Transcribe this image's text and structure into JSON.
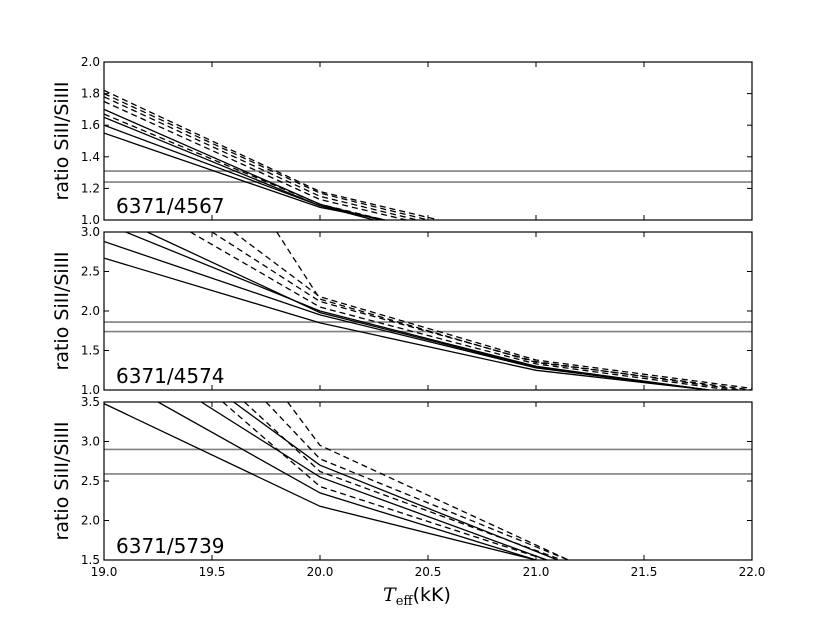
{
  "chart_data": [
    {
      "type": "line",
      "panel_label": "6371/4567",
      "ylabel": "ratio SiII/SiIII",
      "ylim": [
        1.0,
        2.0
      ],
      "yticks": [
        "1.0",
        "1.2",
        "1.4",
        "1.6",
        "1.8",
        "2.0"
      ],
      "xlim": [
        19.0,
        22.0
      ],
      "observed_levels": [
        1.31,
        1.24
      ],
      "series": [
        {
          "style": "solid",
          "x": [
            19.0,
            20.0,
            20.3
          ],
          "y": [
            1.55,
            1.08,
            1.0
          ]
        },
        {
          "style": "solid",
          "x": [
            19.0,
            20.0,
            20.25
          ],
          "y": [
            1.6,
            1.09,
            1.0
          ]
        },
        {
          "style": "solid",
          "x": [
            19.0,
            20.0,
            20.3
          ],
          "y": [
            1.65,
            1.09,
            1.0
          ]
        },
        {
          "style": "solid",
          "x": [
            19.0,
            20.0,
            20.28
          ],
          "y": [
            1.7,
            1.1,
            1.0
          ]
        },
        {
          "style": "dashed",
          "x": [
            19.0,
            20.0,
            20.3
          ],
          "y": [
            1.67,
            1.1,
            1.0
          ]
        },
        {
          "style": "dashed",
          "x": [
            19.0,
            20.0,
            20.4
          ],
          "y": [
            1.75,
            1.13,
            1.0
          ]
        },
        {
          "style": "dashed",
          "x": [
            19.0,
            20.0,
            20.45
          ],
          "y": [
            1.78,
            1.15,
            1.0
          ]
        },
        {
          "style": "dashed",
          "x": [
            19.0,
            20.0,
            20.5
          ],
          "y": [
            1.8,
            1.17,
            1.0
          ]
        },
        {
          "style": "dashed",
          "x": [
            19.0,
            20.0,
            20.55
          ],
          "y": [
            1.82,
            1.18,
            1.0
          ]
        }
      ]
    },
    {
      "type": "line",
      "panel_label": "6371/4574",
      "ylabel": "ratio SiII/SiIII",
      "ylim": [
        1.0,
        3.0
      ],
      "yticks": [
        "1.0",
        "1.5",
        "2.0",
        "2.5",
        "3.0"
      ],
      "xlim": [
        19.0,
        22.0
      ],
      "observed_levels": [
        1.86,
        1.74
      ],
      "series": [
        {
          "style": "solid",
          "x": [
            19.0,
            20.0,
            21.0,
            21.8
          ],
          "y": [
            2.67,
            1.85,
            1.25,
            1.0
          ]
        },
        {
          "style": "solid",
          "x": [
            19.0,
            20.0,
            21.0,
            21.8
          ],
          "y": [
            2.88,
            1.95,
            1.28,
            1.0
          ]
        },
        {
          "style": "solid",
          "x": [
            19.1,
            20.0,
            21.0,
            21.8
          ],
          "y": [
            3.0,
            2.0,
            1.3,
            1.0
          ]
        },
        {
          "style": "solid",
          "x": [
            19.2,
            20.0,
            21.0,
            21.8
          ],
          "y": [
            3.0,
            1.98,
            1.29,
            1.0
          ]
        },
        {
          "style": "dashed",
          "x": [
            19.4,
            20.0,
            21.0,
            21.9
          ],
          "y": [
            3.0,
            2.05,
            1.33,
            1.0
          ]
        },
        {
          "style": "dashed",
          "x": [
            19.5,
            20.0,
            21.0,
            21.95
          ],
          "y": [
            3.0,
            2.12,
            1.36,
            1.0
          ]
        },
        {
          "style": "dashed",
          "x": [
            19.6,
            20.0,
            21.0,
            22.0
          ],
          "y": [
            3.0,
            2.18,
            1.38,
            1.02
          ]
        },
        {
          "style": "dashed",
          "x": [
            19.8,
            20.0,
            21.0,
            22.0
          ],
          "y": [
            3.0,
            2.15,
            1.35,
            1.0
          ]
        }
      ]
    },
    {
      "type": "line",
      "panel_label": "6371/5739",
      "ylabel": "ratio SiII/SiIII",
      "ylim": [
        1.5,
        3.5
      ],
      "yticks": [
        "1.5",
        "2.0",
        "2.5",
        "3.0",
        "3.5"
      ],
      "xlim": [
        19.0,
        22.0
      ],
      "xticks": [
        "19.0",
        "19.5",
        "20.0",
        "20.5",
        "21.0",
        "21.5",
        "22.0"
      ],
      "xlabel": "(kK)",
      "observed_levels": [
        2.9,
        2.59
      ],
      "series": [
        {
          "style": "solid",
          "x": [
            19.0,
            20.0,
            21.0
          ],
          "y": [
            3.48,
            2.18,
            1.5
          ]
        },
        {
          "style": "solid",
          "x": [
            19.25,
            20.0,
            21.0
          ],
          "y": [
            3.5,
            2.35,
            1.5
          ]
        },
        {
          "style": "solid",
          "x": [
            19.45,
            20.0,
            21.05
          ],
          "y": [
            3.5,
            2.55,
            1.5
          ]
        },
        {
          "style": "solid",
          "x": [
            19.6,
            20.0,
            21.1
          ],
          "y": [
            3.5,
            2.7,
            1.5
          ]
        },
        {
          "style": "dashed",
          "x": [
            19.55,
            20.0,
            21.05
          ],
          "y": [
            3.5,
            2.43,
            1.5
          ]
        },
        {
          "style": "dashed",
          "x": [
            19.65,
            20.0,
            21.1
          ],
          "y": [
            3.5,
            2.62,
            1.52
          ]
        },
        {
          "style": "dashed",
          "x": [
            19.75,
            20.0,
            21.15
          ],
          "y": [
            3.5,
            2.78,
            1.5
          ]
        },
        {
          "style": "dashed",
          "x": [
            19.85,
            20.0,
            21.15
          ],
          "y": [
            3.5,
            2.95,
            1.5
          ]
        }
      ]
    }
  ],
  "xaxis_symbol": "T",
  "xaxis_subscript": "eff"
}
